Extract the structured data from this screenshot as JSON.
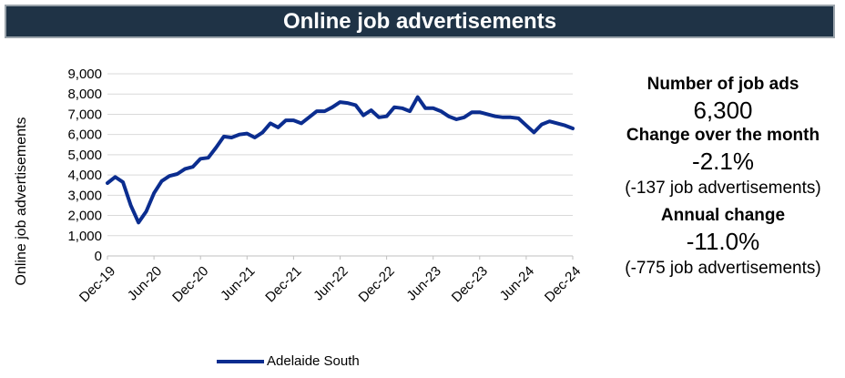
{
  "header": {
    "title": "Online job advertisements"
  },
  "stats": {
    "ads_label": "Number of job ads",
    "ads_value": "6,300",
    "month_label": "Change over the month",
    "month_value": "-2.1%",
    "month_note": "(-137 job advertisements)",
    "annual_label": "Annual change",
    "annual_value": "-11.0%",
    "annual_note": "(-775 job advertisements)"
  },
  "chart_data": {
    "type": "line",
    "ylabel": "Online job advertisements",
    "ylim": [
      0,
      9000
    ],
    "yticks": [
      "0",
      "1,000",
      "2,000",
      "3,000",
      "4,000",
      "5,000",
      "6,000",
      "7,000",
      "8,000",
      "9,000"
    ],
    "xticks": [
      "Dec-19",
      "Jun-20",
      "Dec-20",
      "Jun-21",
      "Dec-21",
      "Jun-22",
      "Dec-22",
      "Jun-23",
      "Dec-23",
      "Jun-24",
      "Dec-24"
    ],
    "grid": true,
    "legend": "bottom",
    "color": "#0b2d8f",
    "series": [
      {
        "name": "Adelaide South",
        "x": [
          "Dec-19",
          "Jan-20",
          "Feb-20",
          "Mar-20",
          "Apr-20",
          "May-20",
          "Jun-20",
          "Jul-20",
          "Aug-20",
          "Sep-20",
          "Oct-20",
          "Nov-20",
          "Dec-20",
          "Jan-21",
          "Feb-21",
          "Mar-21",
          "Apr-21",
          "May-21",
          "Jun-21",
          "Jul-21",
          "Aug-21",
          "Sep-21",
          "Oct-21",
          "Nov-21",
          "Dec-21",
          "Jan-22",
          "Feb-22",
          "Mar-22",
          "Apr-22",
          "May-22",
          "Jun-22",
          "Jul-22",
          "Aug-22",
          "Sep-22",
          "Oct-22",
          "Nov-22",
          "Dec-22",
          "Jan-23",
          "Feb-23",
          "Mar-23",
          "Apr-23",
          "May-23",
          "Jun-23",
          "Jul-23",
          "Aug-23",
          "Sep-23",
          "Oct-23",
          "Nov-23",
          "Dec-23",
          "Jan-24",
          "Feb-24",
          "Mar-24",
          "Apr-24",
          "May-24",
          "Jun-24",
          "Jul-24",
          "Aug-24",
          "Sep-24",
          "Oct-24",
          "Nov-24",
          "Dec-24"
        ],
        "values": [
          3600,
          3900,
          3650,
          2500,
          1650,
          2200,
          3100,
          3700,
          3950,
          4050,
          4300,
          4400,
          4800,
          4850,
          5350,
          5900,
          5850,
          6000,
          6050,
          5850,
          6100,
          6550,
          6350,
          6700,
          6700,
          6550,
          6850,
          7150,
          7150,
          7350,
          7600,
          7550,
          7450,
          6950,
          7200,
          6850,
          6900,
          7350,
          7300,
          7150,
          7850,
          7300,
          7300,
          7150,
          6900,
          6750,
          6850,
          7100,
          7100,
          7000,
          6900,
          6850,
          6850,
          6800,
          6450,
          6100,
          6500,
          6650,
          6550,
          6450,
          6300
        ]
      }
    ]
  }
}
